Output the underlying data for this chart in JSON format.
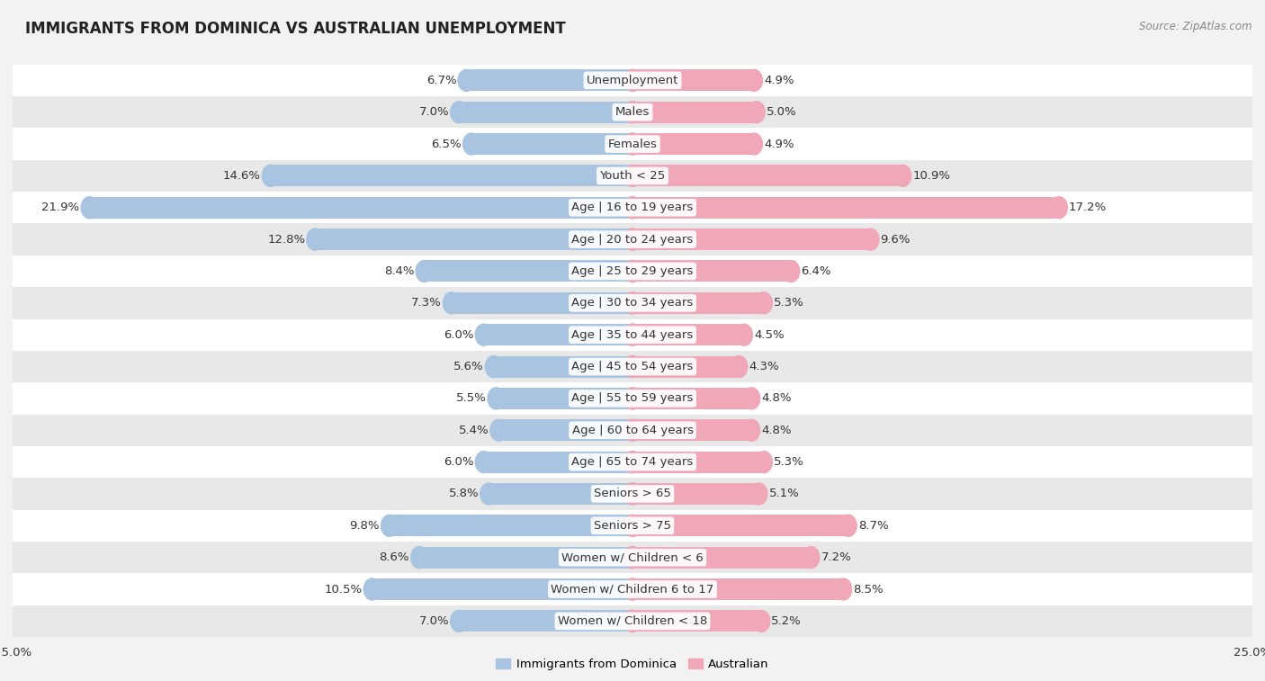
{
  "title": "IMMIGRANTS FROM DOMINICA VS AUSTRALIAN UNEMPLOYMENT",
  "source": "Source: ZipAtlas.com",
  "categories": [
    "Unemployment",
    "Males",
    "Females",
    "Youth < 25",
    "Age | 16 to 19 years",
    "Age | 20 to 24 years",
    "Age | 25 to 29 years",
    "Age | 30 to 34 years",
    "Age | 35 to 44 years",
    "Age | 45 to 54 years",
    "Age | 55 to 59 years",
    "Age | 60 to 64 years",
    "Age | 65 to 74 years",
    "Seniors > 65",
    "Seniors > 75",
    "Women w/ Children < 6",
    "Women w/ Children 6 to 17",
    "Women w/ Children < 18"
  ],
  "dominica_values": [
    6.7,
    7.0,
    6.5,
    14.6,
    21.9,
    12.8,
    8.4,
    7.3,
    6.0,
    5.6,
    5.5,
    5.4,
    6.0,
    5.8,
    9.8,
    8.6,
    10.5,
    7.0
  ],
  "australian_values": [
    4.9,
    5.0,
    4.9,
    10.9,
    17.2,
    9.6,
    6.4,
    5.3,
    4.5,
    4.3,
    4.8,
    4.8,
    5.3,
    5.1,
    8.7,
    7.2,
    8.5,
    5.2
  ],
  "dominica_color": "#a8c4e0",
  "australian_color": "#f0a8b8",
  "dominica_label": "Immigrants from Dominica",
  "australian_label": "Australian",
  "xlim": 25.0,
  "bar_height": 0.68,
  "background_color": "#f2f2f2",
  "row_even_color": "#ffffff",
  "row_odd_color": "#e8e8e8",
  "label_color": "#333333",
  "value_fontsize": 9.5,
  "category_fontsize": 9.5,
  "title_fontsize": 12,
  "source_fontsize": 8.5
}
